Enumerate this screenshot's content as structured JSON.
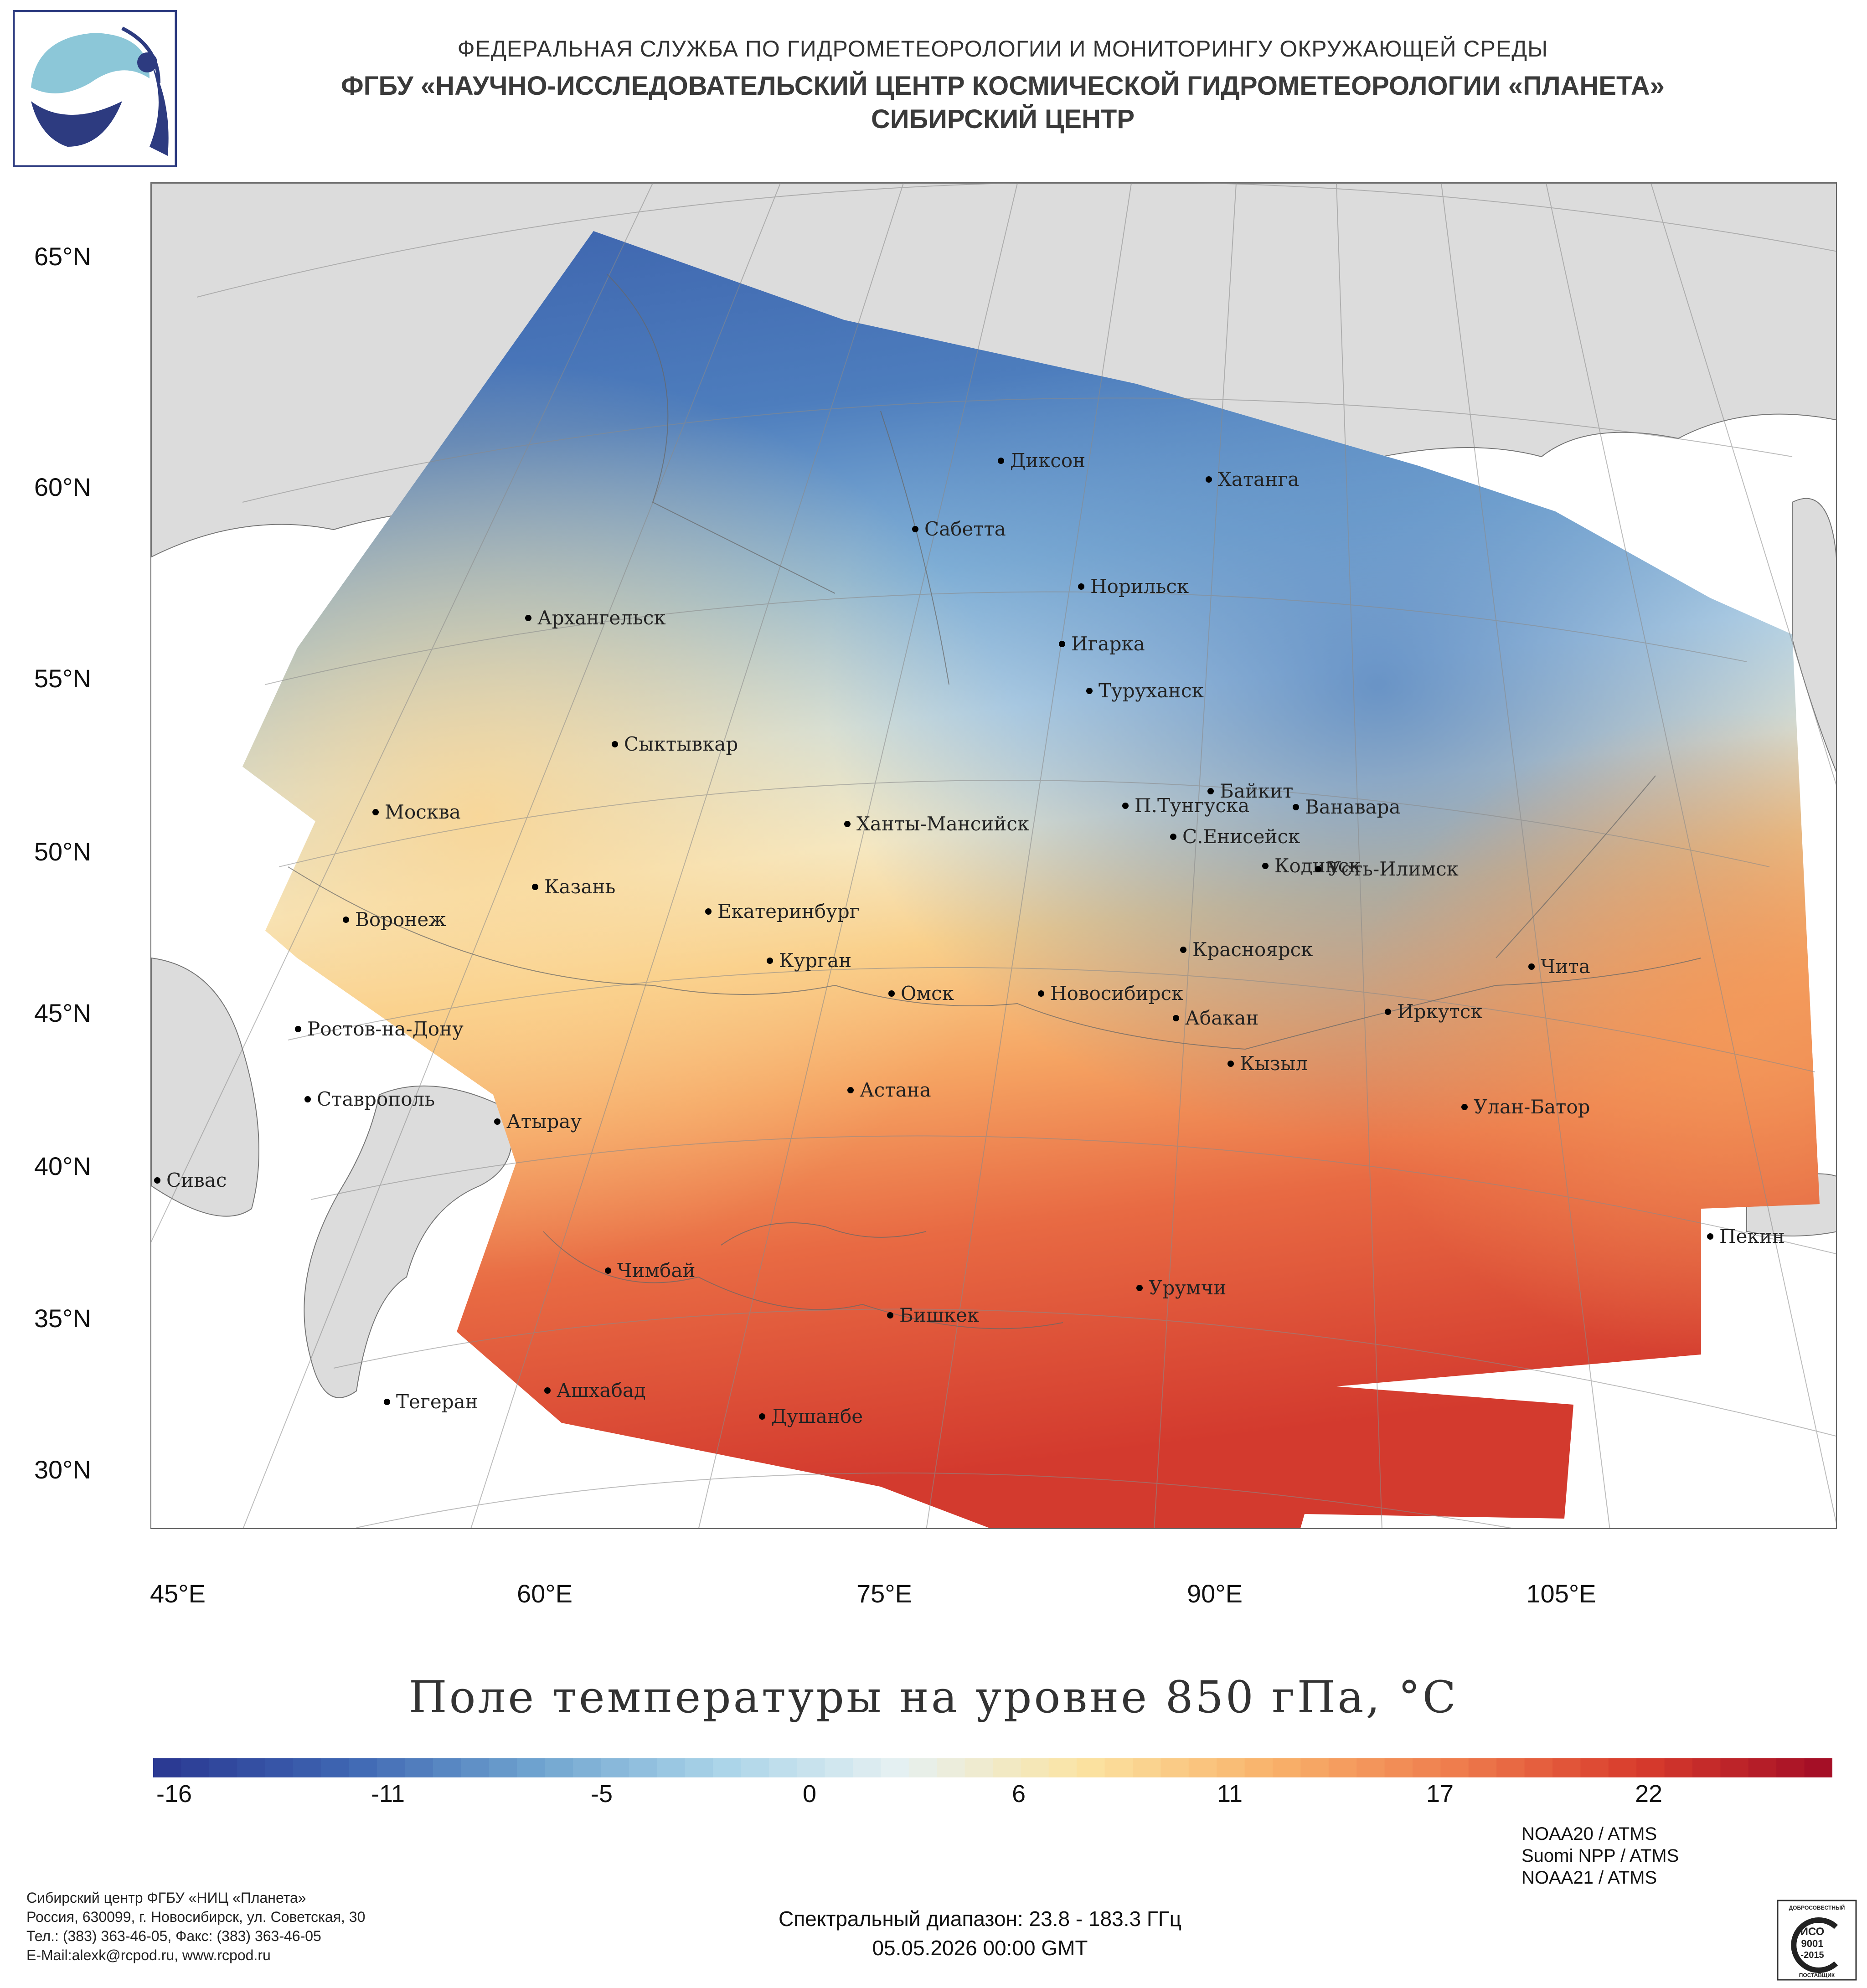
{
  "header": {
    "line1": "ФЕДЕРАЛЬНАЯ СЛУЖБА ПО ГИДРОМЕТЕОРОЛОГИИ И МОНИТОРИНГУ ОКРУЖАЮЩЕЙ СРЕДЫ",
    "line2": "ФГБУ «НАУЧНО-ИССЛЕДОВАТЕЛЬСКИЙ ЦЕНТР КОСМИЧЕСКОЙ ГИДРОМЕТЕОРОЛОГИИ «ПЛАНЕТА»",
    "line3": "СИБИРСКИЙ ЦЕНТР"
  },
  "logo": {
    "icon": "planeta-logo-icon"
  },
  "map": {
    "lat_labels": [
      "65°N",
      "60°N",
      "55°N",
      "50°N",
      "45°N",
      "40°N",
      "35°N",
      "30°N"
    ],
    "lon_labels": [
      "45°E",
      "60°E",
      "75°E",
      "90°E",
      "105°E"
    ],
    "cities": [
      {
        "name": "Диксон"
      },
      {
        "name": "Хатанга"
      },
      {
        "name": "Сабетта"
      },
      {
        "name": "Норильск"
      },
      {
        "name": "Архангельск"
      },
      {
        "name": "Игарка"
      },
      {
        "name": "Туруханск"
      },
      {
        "name": "Сыктывкар"
      },
      {
        "name": "Байкит"
      },
      {
        "name": "П.Тунгуска"
      },
      {
        "name": "Ванавара"
      },
      {
        "name": "Москва"
      },
      {
        "name": "Ханты-Мансийск"
      },
      {
        "name": "С.Енисейск"
      },
      {
        "name": "Кодинск"
      },
      {
        "name": "Усть-Илимск"
      },
      {
        "name": "Казань"
      },
      {
        "name": "Екатеринбург"
      },
      {
        "name": "Воронеж"
      },
      {
        "name": "Красноярск"
      },
      {
        "name": "Курган"
      },
      {
        "name": "Чита"
      },
      {
        "name": "Омск"
      },
      {
        "name": "Новосибирск"
      },
      {
        "name": "Ростов-на-Дону"
      },
      {
        "name": "Иркутск"
      },
      {
        "name": "Абакан"
      },
      {
        "name": "Кызыл"
      },
      {
        "name": "Ставрополь"
      },
      {
        "name": "Астана"
      },
      {
        "name": "Улан-Батор"
      },
      {
        "name": "Атырау"
      },
      {
        "name": "Сивас"
      },
      {
        "name": "Пекин"
      },
      {
        "name": "Чимбай"
      },
      {
        "name": "Урумчи"
      },
      {
        "name": "Бишкек"
      },
      {
        "name": "Ашхабад"
      },
      {
        "name": "Тегеран"
      },
      {
        "name": "Душанбе"
      }
    ]
  },
  "title": "Поле температуры на уровне 850 гПа, °C",
  "colorbar": {
    "min": -16,
    "max": 25,
    "ticks": [
      "-16",
      "-11",
      "-5",
      "0",
      "6",
      "11",
      "17",
      "22"
    ],
    "colors": [
      "#2b3a93",
      "#3f67b3",
      "#6fa3cf",
      "#a9d3e8",
      "#e6f1f2",
      "#fbe3a1",
      "#f9b36b",
      "#ef7e4e",
      "#d93d2d",
      "#a50f26"
    ]
  },
  "footer": {
    "org_line1": "Сибирский центр ФГБУ «НИЦ «Планета»",
    "org_line2": "Россия, 630099, г. Новосибирск, ул. Советская, 30",
    "org_line3": "Тел.: (383) 363-46-05, Факс: (383) 363-46-05",
    "org_line4": "E-Mail:alexk@rcpod.ru, www.rcpod.ru",
    "spectral": "Спектральный диапазон: 23.8 - 183.3 ГГц",
    "datetime": "05.05.2026 00:00 GMT",
    "sat1": "NOAA20 / ATMS",
    "sat2": "Suomi NPP / ATMS",
    "sat3": "NOAA21 / ATMS",
    "iso_top": "ДОБРОСОВЕСТНЫЙ",
    "iso_main": "ИСО",
    "iso_num": "9001",
    "iso_year": "-2015",
    "iso_bottom": "ПОСТАВЩИК"
  }
}
